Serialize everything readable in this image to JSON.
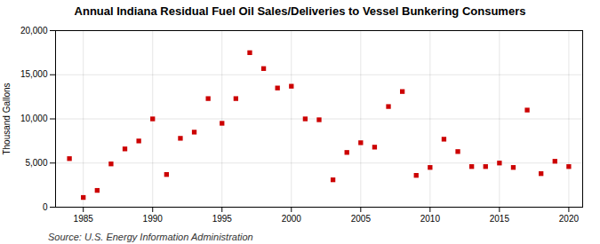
{
  "chart_data": {
    "type": "scatter",
    "title": "Annual Indiana Residual Fuel Oil Sales/Deliveries to Vessel Bunkering Consumers",
    "ylabel": "Thousand Gallons",
    "source": "Source: U.S. Energy Information Administration",
    "x": [
      1984,
      1985,
      1986,
      1987,
      1988,
      1989,
      1990,
      1991,
      1992,
      1993,
      1994,
      1995,
      1996,
      1997,
      1998,
      1999,
      2000,
      2001,
      2002,
      2003,
      2004,
      2005,
      2006,
      2007,
      2008,
      2009,
      2010,
      2011,
      2012,
      2013,
      2014,
      2015,
      2016,
      2017,
      2018,
      2019,
      2020
    ],
    "values": [
      5500,
      1100,
      1900,
      4900,
      6600,
      7500,
      10000,
      3700,
      7800,
      8500,
      12300,
      9500,
      12300,
      17500,
      15700,
      13500,
      13700,
      10000,
      9900,
      3100,
      6200,
      7300,
      6800,
      11400,
      13100,
      3600,
      4500,
      7700,
      6300,
      4600,
      4600,
      5000,
      4500,
      11000,
      3800,
      5200,
      4600
    ],
    "color": "#cc0000",
    "marker": "square",
    "xlim": [
      1983,
      2021
    ],
    "xticks": [
      1985,
      1990,
      1995,
      2000,
      2005,
      2010,
      2015,
      2020
    ],
    "ylim": [
      0,
      20000
    ],
    "yticks": [
      0,
      {
        "value": 5000,
        "label": "5,000"
      },
      {
        "value": 10000,
        "label": "10,000"
      },
      {
        "value": 15000,
        "label": "15,000"
      },
      {
        "value": 20000,
        "label": "20,000"
      }
    ],
    "grid": true
  }
}
